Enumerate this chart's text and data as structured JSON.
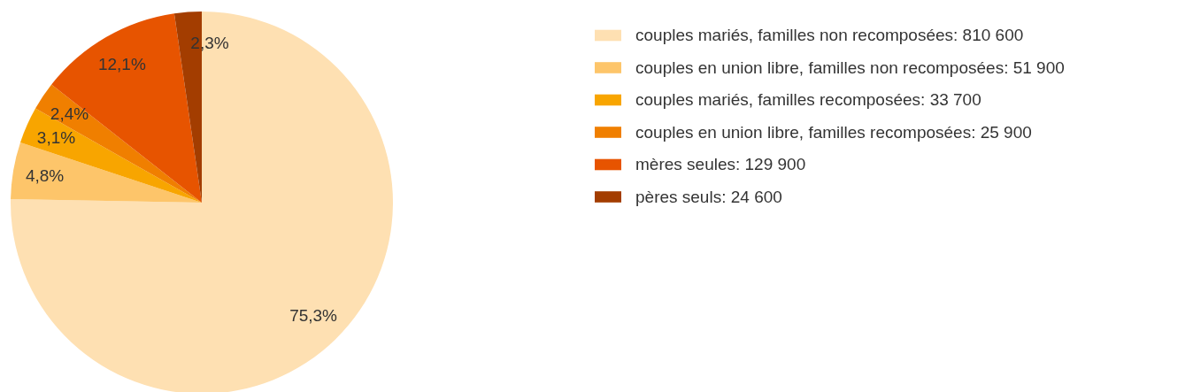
{
  "chart_data": {
    "type": "pie",
    "categories": [
      "couples mariés, familles non recomposées: 810 600",
      "couples en union libre, familles non recomposées: 51 900",
      "couples mariés, familles recomposées: 33 700",
      "couples en union libre, familles recomposées: 25 900",
      "mères seules: 129 900",
      "pères seuls: 24 600"
    ],
    "values": [
      75.3,
      4.8,
      3.1,
      2.4,
      12.1,
      2.3
    ],
    "colors": [
      "#fee0b2",
      "#fdc56a",
      "#f8a500",
      "#f07f00",
      "#e75400",
      "#a33d00"
    ],
    "value_labels": [
      "75,3%",
      "4,8%",
      "3,1%",
      "2,4%",
      "12,1%",
      "2,3%"
    ],
    "legend": "right"
  }
}
